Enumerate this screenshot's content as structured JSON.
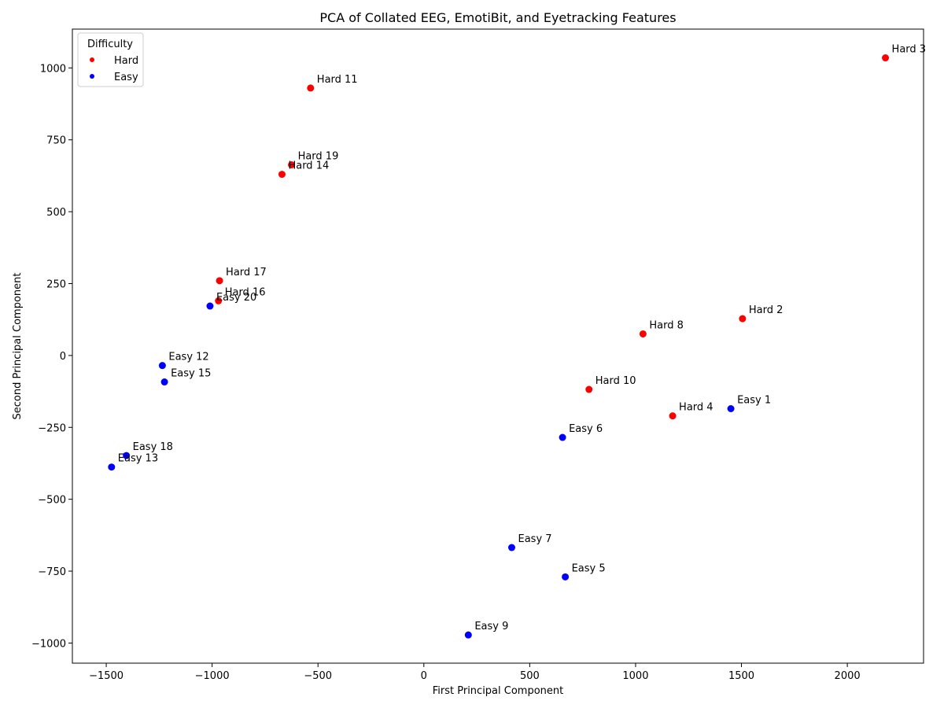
{
  "chart_data": {
    "type": "scatter",
    "title": "PCA of Collated EEG, EmotiBit, and Eyetracking Features",
    "xlabel": "First Principal Component",
    "ylabel": "Second Principal Component",
    "xlim": [
      -1660,
      2360
    ],
    "ylim": [
      -1070,
      1135
    ],
    "xticks": [
      -1500,
      -1000,
      -500,
      0,
      500,
      1000,
      1500,
      2000
    ],
    "yticks": [
      -1000,
      -750,
      -500,
      -250,
      0,
      250,
      500,
      750,
      1000
    ],
    "xtick_labels": [
      "−1500",
      "−1000",
      "−500",
      "0",
      "500",
      "1000",
      "1500",
      "2000"
    ],
    "ytick_labels": [
      "−1000",
      "−750",
      "−500",
      "−250",
      "0",
      "250",
      "500",
      "750",
      "1000"
    ],
    "grid": false,
    "legend": {
      "title": "Difficulty",
      "placement": "top-left",
      "entries": [
        {
          "label": "Hard",
          "color": "#ff0000"
        },
        {
          "label": "Easy",
          "color": "#0000ff"
        }
      ]
    },
    "series": [
      {
        "name": "Hard",
        "color": "#ff0000",
        "points": [
          {
            "label": "Hard 3",
            "x": 2180,
            "y": 1035
          },
          {
            "label": "Hard 11",
            "x": -535,
            "y": 930
          },
          {
            "label": "Hard 19",
            "x": -625,
            "y": 663
          },
          {
            "label": "Hard 14",
            "x": -670,
            "y": 630
          },
          {
            "label": "Hard 17",
            "x": -965,
            "y": 260
          },
          {
            "label": "Hard 16",
            "x": -970,
            "y": 190
          },
          {
            "label": "Hard 2",
            "x": 1505,
            "y": 128
          },
          {
            "label": "Hard 8",
            "x": 1035,
            "y": 75
          },
          {
            "label": "Hard 10",
            "x": 780,
            "y": -118
          },
          {
            "label": "Hard 4",
            "x": 1175,
            "y": -210
          }
        ]
      },
      {
        "name": "Easy",
        "color": "#0000ff",
        "points": [
          {
            "label": "Easy 20",
            "x": -1010,
            "y": 172
          },
          {
            "label": "Easy 12",
            "x": -1235,
            "y": -35
          },
          {
            "label": "Easy 15",
            "x": -1225,
            "y": -92
          },
          {
            "label": "Easy 1",
            "x": 1450,
            "y": -185
          },
          {
            "label": "Easy 6",
            "x": 655,
            "y": -285
          },
          {
            "label": "Easy 18",
            "x": -1405,
            "y": -348
          },
          {
            "label": "Easy 13",
            "x": -1475,
            "y": -388
          },
          {
            "label": "Easy 7",
            "x": 415,
            "y": -668
          },
          {
            "label": "Easy 5",
            "x": 668,
            "y": -770
          },
          {
            "label": "Easy 9",
            "x": 210,
            "y": -972
          }
        ]
      }
    ]
  }
}
